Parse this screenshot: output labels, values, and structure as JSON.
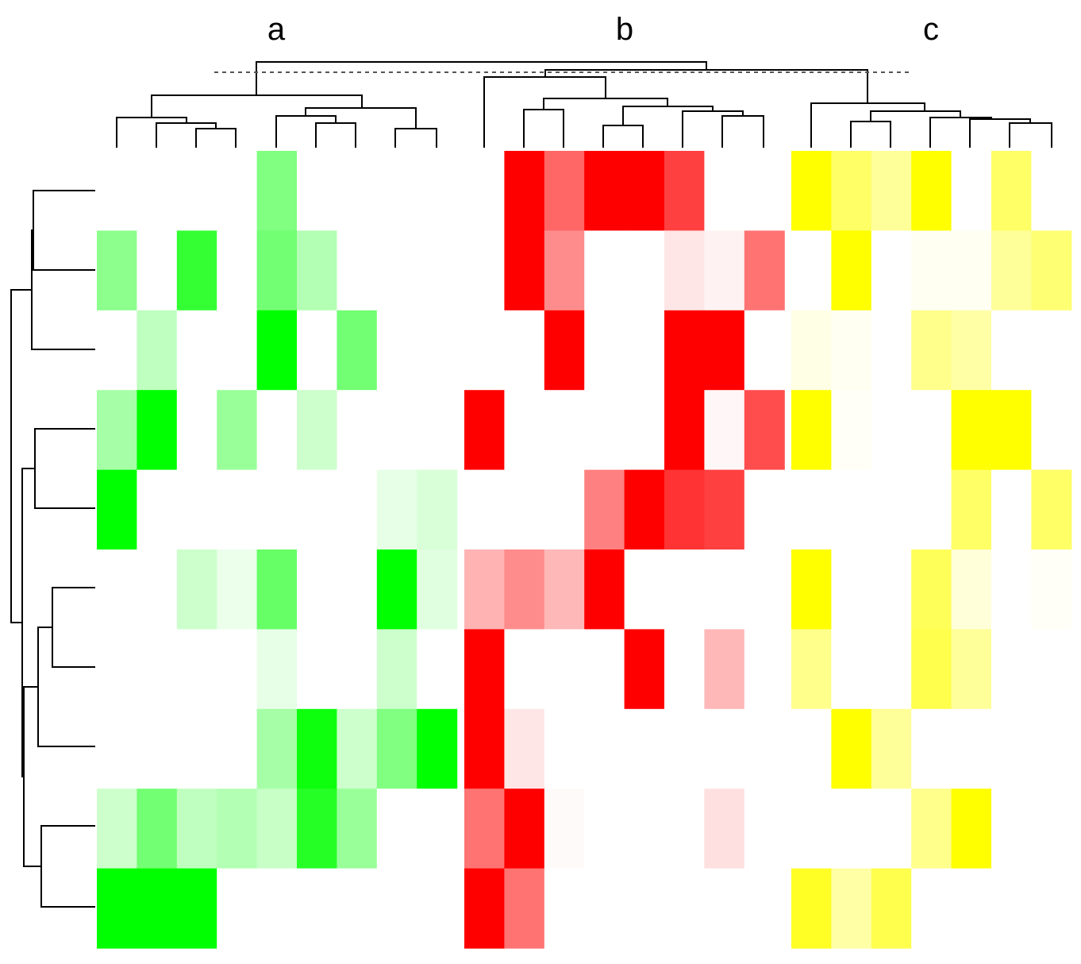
{
  "chart_data": {
    "type": "heatmap",
    "title": "",
    "groups": [
      {
        "label": "a",
        "color": "#00ff00",
        "values": [
          [
            0,
            0,
            0,
            0,
            0.5,
            0,
            0,
            0,
            0
          ],
          [
            0.45,
            0,
            0.8,
            0,
            0.55,
            0.3,
            0,
            0,
            0
          ],
          [
            0,
            0.25,
            0,
            0,
            1,
            0,
            0.55,
            0,
            0
          ],
          [
            0.35,
            1,
            0,
            0.4,
            0,
            0.2,
            0,
            0,
            0
          ],
          [
            1,
            0,
            0,
            0,
            0,
            0,
            0,
            0.1,
            0.15
          ],
          [
            0,
            0,
            0.2,
            0.08,
            0.6,
            0,
            0,
            1,
            0.12
          ],
          [
            0,
            0,
            0,
            0,
            0.1,
            0,
            0,
            0.2,
            0
          ],
          [
            0,
            0,
            0,
            0,
            0.35,
            0.95,
            0.2,
            0.5,
            1
          ],
          [
            0.2,
            0.55,
            0.25,
            0.3,
            0.22,
            0.85,
            0.4,
            0,
            0
          ],
          [
            1,
            1,
            1,
            0,
            0,
            0,
            0,
            0,
            0
          ]
        ]
      },
      {
        "label": "b",
        "color": "#ff0000",
        "values": [
          [
            0,
            1,
            0.6,
            1,
            1,
            0.75,
            0,
            0
          ],
          [
            0,
            1,
            0.45,
            0,
            0,
            0.1,
            0.05,
            0.55
          ],
          [
            0,
            0,
            1,
            0,
            0,
            1,
            1,
            0
          ],
          [
            1,
            0,
            0,
            0,
            0,
            1,
            0.03,
            0.7
          ],
          [
            0,
            0,
            0,
            0.5,
            1,
            0.8,
            0.75,
            0
          ],
          [
            0.3,
            0.45,
            0.28,
            1,
            0,
            0,
            0,
            0
          ],
          [
            1,
            0,
            0,
            0,
            1,
            0,
            0.28,
            0
          ],
          [
            1,
            0.1,
            0,
            0,
            0,
            0,
            0,
            0
          ],
          [
            0.55,
            1,
            0.02,
            0,
            0,
            0,
            0.12,
            0
          ],
          [
            1,
            0.55,
            0,
            0,
            0,
            0,
            0,
            0
          ]
        ]
      },
      {
        "label": "c",
        "color": "#ffff00",
        "values": [
          [
            1,
            0.6,
            0.4,
            1,
            0,
            0.6,
            0
          ],
          [
            0,
            1,
            0,
            0.05,
            0.05,
            0.4,
            0.55
          ],
          [
            0.1,
            0.05,
            0,
            0.45,
            0.35,
            0,
            0
          ],
          [
            1,
            0.03,
            0,
            0,
            1,
            1,
            0
          ],
          [
            0,
            0,
            0,
            0,
            0.6,
            0,
            0.6
          ],
          [
            1,
            0,
            0,
            0.65,
            0.15,
            0,
            0.03
          ],
          [
            0.45,
            0,
            0,
            0.7,
            0.4,
            0,
            0
          ],
          [
            0,
            1,
            0.4,
            0,
            0,
            0,
            0
          ],
          [
            0,
            0,
            0,
            0.45,
            1,
            0,
            0
          ],
          [
            0.85,
            0.35,
            0.7,
            0,
            0,
            0,
            0
          ]
        ]
      }
    ],
    "row_dendrogram": true,
    "column_dendrogram": true,
    "cut_line": "dashed"
  }
}
